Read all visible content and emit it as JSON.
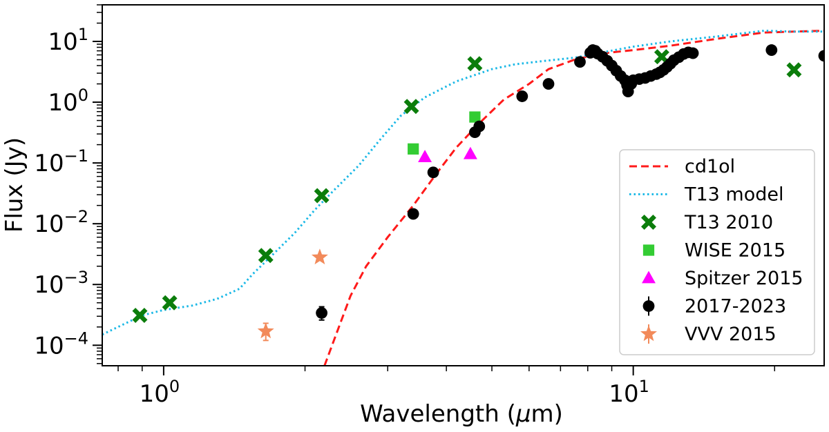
{
  "chart_data": {
    "type": "scatter",
    "xlabel_prefix": "Wavelength (",
    "xlabel_mu": "μ",
    "xlabel_suffix": "m)",
    "ylabel": "Flux (Jy)",
    "xscale": "log",
    "yscale": "log",
    "xlim": [
      0.74,
      25.5
    ],
    "ylim": [
      4.6e-05,
      40
    ],
    "x_major_ticks": [
      {
        "value": 1,
        "mantissa": "10",
        "exp": "0"
      },
      {
        "value": 10,
        "mantissa": "10",
        "exp": "1"
      }
    ],
    "y_major_ticks": [
      {
        "value": 0.0001,
        "mantissa": "10",
        "exp": "−4"
      },
      {
        "value": 0.001,
        "mantissa": "10",
        "exp": "−3"
      },
      {
        "value": 0.01,
        "mantissa": "10",
        "exp": "−2"
      },
      {
        "value": 0.1,
        "mantissa": "10",
        "exp": "−1"
      },
      {
        "value": 1,
        "mantissa": "10",
        "exp": "0"
      },
      {
        "value": 10,
        "mantissa": "10",
        "exp": "1"
      }
    ],
    "legend_position": "lower-right",
    "series": [
      {
        "name": "cd1ol",
        "kind": "line",
        "style": "dashed",
        "color": "#ff1a1a",
        "points": [
          [
            2.2,
            4.6e-05
          ],
          [
            2.35,
            0.00018
          ],
          [
            2.5,
            0.00065
          ],
          [
            2.7,
            0.002
          ],
          [
            3.0,
            0.006
          ],
          [
            3.4,
            0.02
          ],
          [
            3.8,
            0.065
          ],
          [
            4.2,
            0.18
          ],
          [
            4.7,
            0.45
          ],
          [
            5.3,
            1.1
          ],
          [
            6.0,
            2.0
          ],
          [
            6.6,
            3.5
          ],
          [
            7.5,
            5.0
          ],
          [
            8.5,
            6.3
          ],
          [
            10,
            7.2
          ],
          [
            12,
            8.5
          ],
          [
            15,
            11
          ],
          [
            19,
            14
          ],
          [
            22,
            14.5
          ],
          [
            25.5,
            15
          ]
        ]
      },
      {
        "name": "T13 model",
        "kind": "line",
        "style": "dotted",
        "color": "#1ab8e6",
        "points": [
          [
            0.74,
            0.00015
          ],
          [
            0.82,
            0.00022
          ],
          [
            0.9,
            0.00031
          ],
          [
            1.0,
            0.00038
          ],
          [
            1.15,
            0.00045
          ],
          [
            1.3,
            0.00058
          ],
          [
            1.45,
            0.00085
          ],
          [
            1.55,
            0.0015
          ],
          [
            1.7,
            0.003
          ],
          [
            1.9,
            0.007
          ],
          [
            2.1,
            0.017
          ],
          [
            2.3,
            0.035
          ],
          [
            2.6,
            0.09
          ],
          [
            2.9,
            0.25
          ],
          [
            3.2,
            0.6
          ],
          [
            3.6,
            1.2
          ],
          [
            4.2,
            2.2
          ],
          [
            5.0,
            3.5
          ],
          [
            5.6,
            4.2
          ],
          [
            6.5,
            4.8
          ],
          [
            7.5,
            5.4
          ],
          [
            8.5,
            6.5
          ],
          [
            10,
            8.2
          ],
          [
            12,
            10
          ],
          [
            15,
            12
          ],
          [
            19,
            15
          ],
          [
            22,
            14.5
          ],
          [
            25.5,
            14.5
          ]
        ]
      },
      {
        "name": "T13 2010",
        "kind": "scatter",
        "marker": "x",
        "color": "#0b7d0b",
        "points": [
          [
            0.89,
            0.00031
          ],
          [
            1.03,
            0.0005
          ],
          [
            1.65,
            0.003
          ],
          [
            2.17,
            0.029
          ],
          [
            3.37,
            0.85
          ],
          [
            4.6,
            4.3
          ],
          [
            11.5,
            5.6
          ],
          [
            22,
            3.4
          ]
        ]
      },
      {
        "name": "WISE 2015",
        "kind": "scatter",
        "marker": "square",
        "color": "#33cc33",
        "points": [
          [
            3.4,
            0.17
          ],
          [
            4.6,
            0.57
          ]
        ]
      },
      {
        "name": "Spitzer 2015",
        "kind": "scatter",
        "marker": "triangle",
        "color": "#ff00ff",
        "points": [
          [
            3.6,
            0.125
          ],
          [
            4.5,
            0.14
          ]
        ]
      },
      {
        "name": "2017-2023",
        "kind": "scatter",
        "marker": "circle",
        "color": "#000000",
        "errorbar": [
          [
            2.17,
            0.00034,
            0.00026,
            0.00043
          ]
        ],
        "points": [
          [
            2.17,
            0.00034
          ],
          [
            3.4,
            0.0145
          ],
          [
            3.75,
            0.07
          ],
          [
            4.6,
            0.32
          ],
          [
            4.7,
            0.4
          ],
          [
            5.8,
            1.25
          ],
          [
            6.6,
            2.0
          ],
          [
            7.7,
            4.6
          ],
          [
            8.1,
            6.5
          ],
          [
            8.2,
            7.2
          ],
          [
            8.3,
            7.0
          ],
          [
            8.4,
            6.3
          ],
          [
            8.6,
            5.6
          ],
          [
            8.8,
            4.8
          ],
          [
            9.0,
            4.0
          ],
          [
            9.2,
            3.3
          ],
          [
            9.4,
            2.7
          ],
          [
            9.6,
            2.3
          ],
          [
            9.7,
            1.9
          ],
          [
            9.75,
            1.5
          ],
          [
            9.9,
            2.0
          ],
          [
            10.0,
            2.3
          ],
          [
            10.3,
            2.4
          ],
          [
            10.6,
            2.5
          ],
          [
            10.9,
            2.7
          ],
          [
            11.2,
            2.9
          ],
          [
            11.4,
            3.1
          ],
          [
            11.6,
            3.4
          ],
          [
            11.8,
            3.8
          ],
          [
            12.0,
            4.3
          ],
          [
            12.2,
            4.9
          ],
          [
            12.5,
            5.5
          ],
          [
            12.8,
            6.2
          ],
          [
            13.1,
            6.6
          ],
          [
            13.4,
            6.4
          ],
          [
            19.7,
            7.2
          ],
          [
            25.5,
            5.8
          ]
        ]
      },
      {
        "name": "VVV 2015",
        "kind": "scatter",
        "marker": "star",
        "color": "#f28a5a",
        "errorbar": [
          [
            1.65,
            0.00017,
            0.00012,
            0.00023
          ]
        ],
        "points": [
          [
            1.65,
            0.00017
          ],
          [
            2.15,
            0.0028
          ]
        ]
      }
    ]
  }
}
